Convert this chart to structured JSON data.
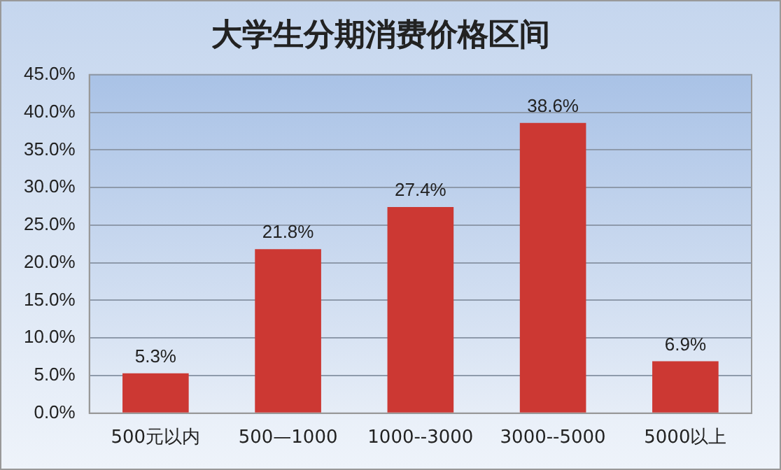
{
  "chart_data": {
    "type": "bar",
    "title": "大学生分期消费价格区间",
    "categories": [
      "500元以内",
      "500—1000",
      "1000--3000",
      "3000--5000",
      "5000以上"
    ],
    "values": [
      5.3,
      21.8,
      27.4,
      38.6,
      6.9
    ],
    "color": "#cc3833",
    "value_labels": [
      "5.3%",
      "21.8%",
      "27.4%",
      "38.6%",
      "6.9%"
    ],
    "ylim": [
      0,
      45
    ],
    "yticks": [
      {
        "value": 0,
        "label": "0.0%"
      },
      {
        "value": 5,
        "label": "5.0%"
      },
      {
        "value": 10,
        "label": "10.0%"
      },
      {
        "value": 15,
        "label": "15.0%"
      },
      {
        "value": 20,
        "label": "20.0%"
      },
      {
        "value": 25,
        "label": "25.0%"
      },
      {
        "value": 30,
        "label": "30.0%"
      },
      {
        "value": 35,
        "label": "35.0%"
      },
      {
        "value": 40,
        "label": "40.0%"
      },
      {
        "value": 45,
        "label": "45.0%"
      }
    ],
    "grid": "y",
    "legend": false
  }
}
